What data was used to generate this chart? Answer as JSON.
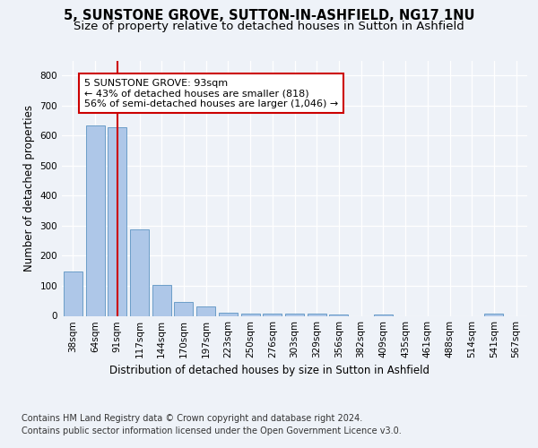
{
  "title": "5, SUNSTONE GROVE, SUTTON-IN-ASHFIELD, NG17 1NU",
  "subtitle": "Size of property relative to detached houses in Sutton in Ashfield",
  "xlabel": "Distribution of detached houses by size in Sutton in Ashfield",
  "ylabel": "Number of detached properties",
  "footer_line1": "Contains HM Land Registry data © Crown copyright and database right 2024.",
  "footer_line2": "Contains public sector information licensed under the Open Government Licence v3.0.",
  "bar_labels": [
    "38sqm",
    "64sqm",
    "91sqm",
    "117sqm",
    "144sqm",
    "170sqm",
    "197sqm",
    "223sqm",
    "250sqm",
    "276sqm",
    "303sqm",
    "329sqm",
    "356sqm",
    "382sqm",
    "409sqm",
    "435sqm",
    "461sqm",
    "488sqm",
    "514sqm",
    "541sqm",
    "567sqm"
  ],
  "bar_values": [
    148,
    635,
    628,
    288,
    103,
    47,
    31,
    11,
    7,
    7,
    7,
    7,
    5,
    0,
    5,
    0,
    0,
    0,
    0,
    7,
    0
  ],
  "bar_color": "#aec7e8",
  "bar_edge_color": "#6b9ec8",
  "vline_x": 2,
  "vline_color": "#cc0000",
  "annotation_text": "5 SUNSTONE GROVE: 93sqm\n← 43% of detached houses are smaller (818)\n56% of semi-detached houses are larger (1,046) →",
  "annotation_box_color": "#ffffff",
  "annotation_box_edge": "#cc0000",
  "ylim": [
    0,
    850
  ],
  "yticks": [
    0,
    100,
    200,
    300,
    400,
    500,
    600,
    700,
    800
  ],
  "bg_color": "#eef2f8",
  "plot_bg_color": "#eef2f8",
  "title_fontsize": 10.5,
  "subtitle_fontsize": 9.5,
  "axis_label_fontsize": 8.5,
  "tick_fontsize": 7.5,
  "footer_fontsize": 7.0
}
